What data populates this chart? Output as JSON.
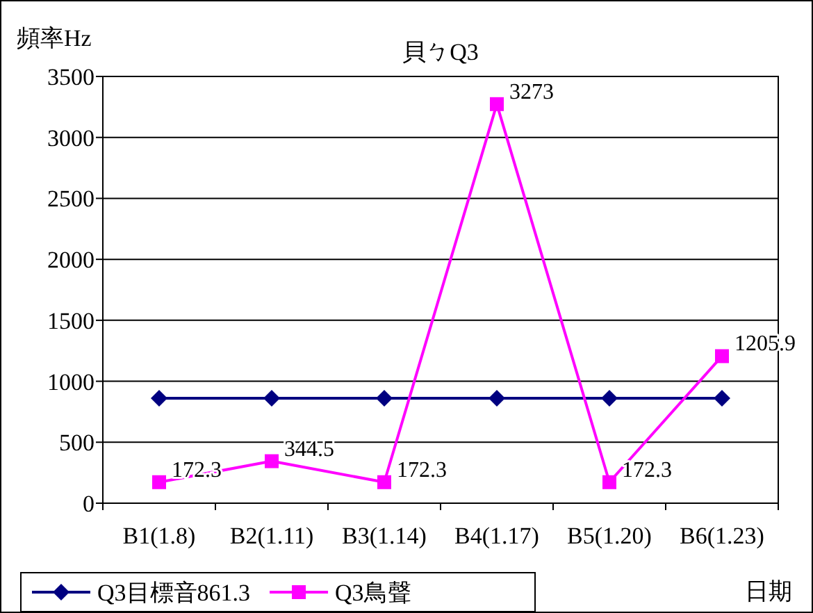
{
  "chart_data": {
    "type": "line",
    "title": "貝ㄅQ3",
    "ylabel": "頻率Hz",
    "xlabel": "日期",
    "categories": [
      "B1(1.8)",
      "B2(1.11)",
      "B3(1.14)",
      "B4(1.17)",
      "B5(1.20)",
      "B6(1.23)"
    ],
    "series": [
      {
        "name": "Q3目標音861.3",
        "color": "#000080",
        "marker": "diamond",
        "values": [
          861.3,
          861.3,
          861.3,
          861.3,
          861.3,
          861.3
        ]
      },
      {
        "name": "Q3鳥聲",
        "color": "#ff00ff",
        "marker": "square",
        "values": [
          172.3,
          344.5,
          172.3,
          3273,
          172.3,
          1205.9
        ],
        "value_labels": [
          "172.3",
          "344.5",
          "172.3",
          "3273",
          "172.3",
          "1205.9"
        ]
      }
    ],
    "ylim": [
      0,
      3500
    ],
    "yticks": [
      0,
      500,
      1000,
      1500,
      2000,
      2500,
      3000,
      3500
    ],
    "grid": "y",
    "legend": "bottom"
  }
}
